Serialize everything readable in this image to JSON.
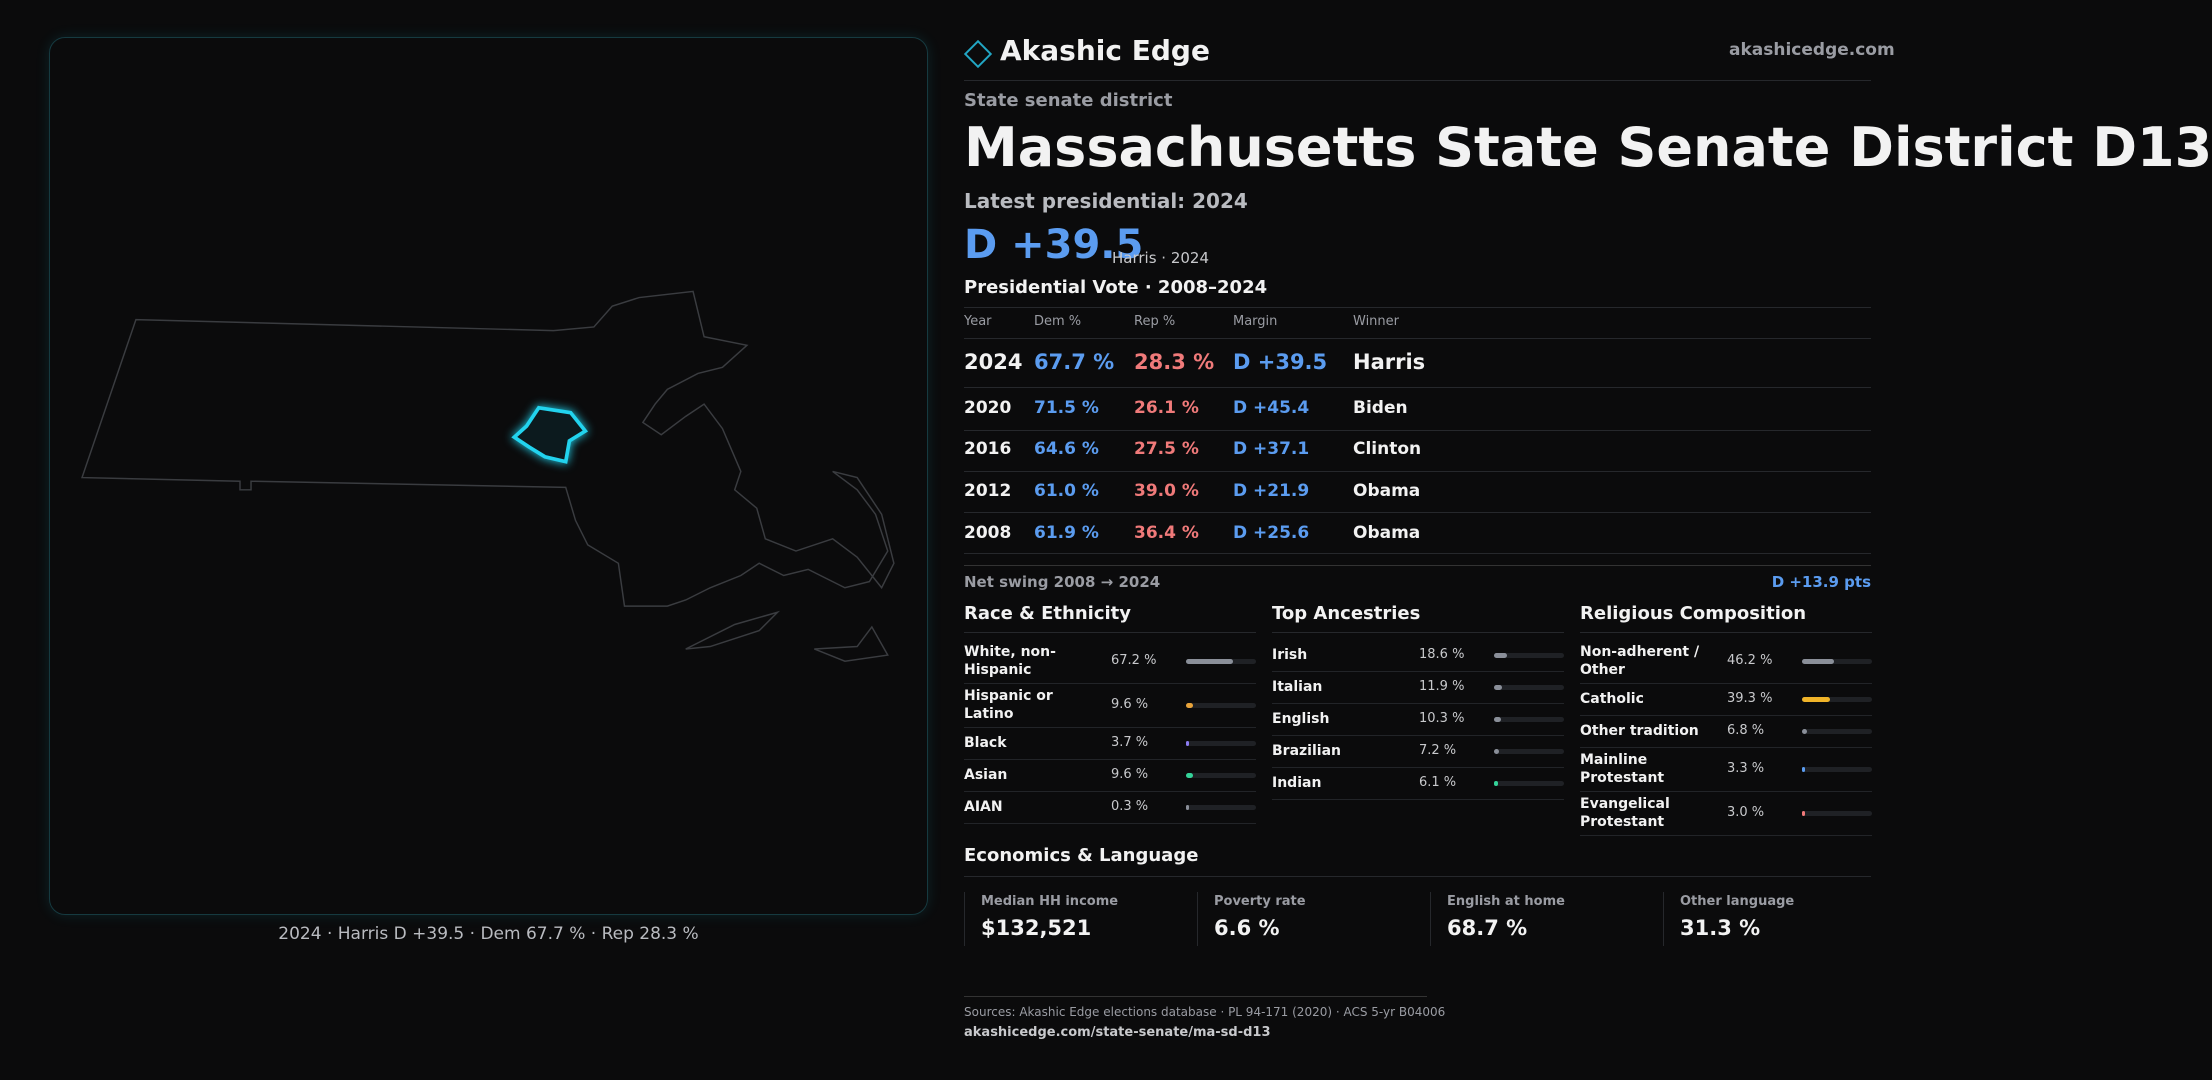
{
  "header": {
    "brand": "Akashic Edge",
    "site": "akashicedge.com"
  },
  "kicker": "State senate district",
  "title": "Massachusetts State Senate District D13",
  "latest_label": "Latest presidential: 2024",
  "latest_margin": "D +39.5",
  "latest_note": "Harris · 2024",
  "vote_title": "Presidential Vote · 2008–2024",
  "vote_table": {
    "columns": [
      "Year",
      "Dem %",
      "Rep %",
      "Margin",
      "Winner"
    ],
    "rows": [
      [
        "2024",
        "67.7 %",
        "28.3 %",
        "D +39.5",
        "Harris"
      ],
      [
        "2020",
        "71.5 %",
        "26.1 %",
        "D +45.4",
        "Biden"
      ],
      [
        "2016",
        "64.6 %",
        "27.5 %",
        "D +37.1",
        "Clinton"
      ],
      [
        "2012",
        "61.0 %",
        "39.0 %",
        "D +21.9",
        "Obama"
      ],
      [
        "2008",
        "61.9 %",
        "36.4 %",
        "D +25.6",
        "Obama"
      ]
    ]
  },
  "swing": {
    "label": "Net swing 2008 → 2024",
    "value": "D +13.9 pts"
  },
  "race": {
    "title": "Race & Ethnicity",
    "items": [
      {
        "name": "White, non-Hispanic",
        "value": 67.2,
        "value_label": "67.2 %",
        "color": "#8a8f99"
      },
      {
        "name": "Hispanic or Latino",
        "value": 9.6,
        "value_label": "9.6 %",
        "color": "#e8a33a"
      },
      {
        "name": "Black",
        "value": 3.7,
        "value_label": "3.7 %",
        "color": "#8b7cf0"
      },
      {
        "name": "Asian",
        "value": 9.6,
        "value_label": "9.6 %",
        "color": "#34d399"
      },
      {
        "name": "AIAN",
        "value": 0.3,
        "value_label": "0.3 %",
        "color": "#8a8f99"
      }
    ]
  },
  "ancestries": {
    "title": "Top Ancestries",
    "items": [
      {
        "name": "Irish",
        "value": 18.6,
        "value_label": "18.6 %",
        "color": "#8a8f99"
      },
      {
        "name": "Italian",
        "value": 11.9,
        "value_label": "11.9 %",
        "color": "#8a8f99"
      },
      {
        "name": "English",
        "value": 10.3,
        "value_label": "10.3 %",
        "color": "#8a8f99"
      },
      {
        "name": "Brazilian",
        "value": 7.2,
        "value_label": "7.2 %",
        "color": "#8a8f99"
      },
      {
        "name": "Indian",
        "value": 6.1,
        "value_label": "6.1 %",
        "color": "#34d399"
      }
    ]
  },
  "religion": {
    "title": "Religious Composition",
    "items": [
      {
        "name": "Non-adherent / Other",
        "value": 46.2,
        "value_label": "46.2 %",
        "color": "#8a8f99"
      },
      {
        "name": "Catholic",
        "value": 39.3,
        "value_label": "39.3 %",
        "color": "#f0b429"
      },
      {
        "name": "Other tradition",
        "value": 6.8,
        "value_label": "6.8 %",
        "color": "#8a8f99"
      },
      {
        "name": "Mainline Protestant",
        "value": 3.3,
        "value_label": "3.3 %",
        "color": "#5b9cf0"
      },
      {
        "name": "Evangelical Protestant",
        "value": 3.0,
        "value_label": "3.0 %",
        "color": "#f07a7a"
      }
    ]
  },
  "economics": {
    "title": "Economics & Language",
    "items": [
      {
        "label": "Median HH income",
        "value": "$132,521"
      },
      {
        "label": "Poverty rate",
        "value": "6.6 %"
      },
      {
        "label": "English at home",
        "value": "68.7 %"
      },
      {
        "label": "Other language",
        "value": "31.3 %"
      }
    ]
  },
  "map_caption": "2024 · Harris D +39.5 · Dem 67.7 % · Rep 28.3 %",
  "sources": "Sources: Akashic Edge elections database · PL 94-171 (2020) · ACS 5-yr B04006",
  "url": "akashicedge.com/state-senate/ma-sd-d13"
}
